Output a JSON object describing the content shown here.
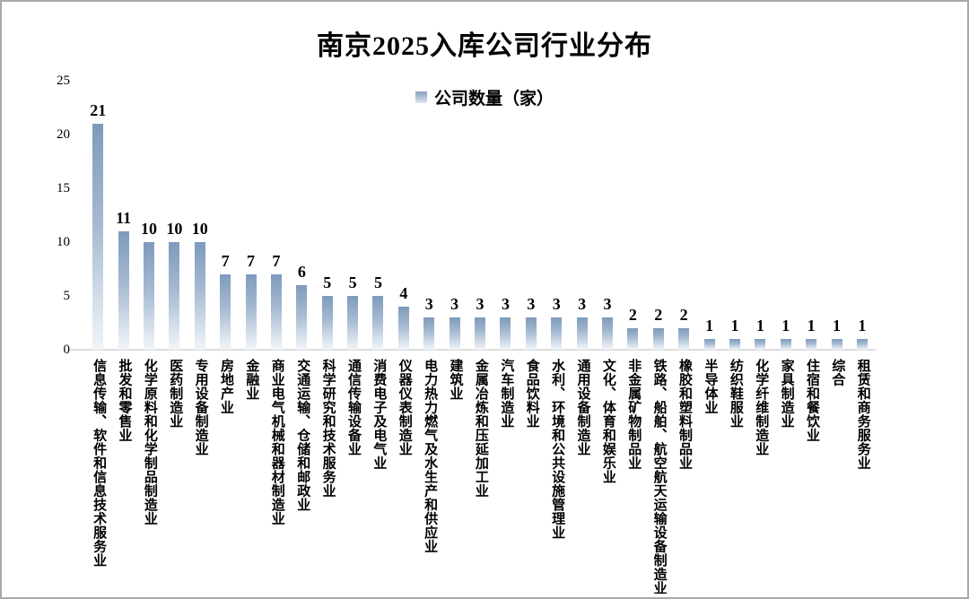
{
  "title": "南京2025入库公司行业分布",
  "legend": {
    "label": "公司数量（家）"
  },
  "colors": {
    "bar_top": "#7e9abc",
    "bar_bottom": "#f1f5f9",
    "baseline": "#dcdcdc",
    "text": "#000000"
  },
  "chart_data": {
    "type": "bar",
    "title": "南京2025入库公司行业分布",
    "legend_entries": [
      "公司数量（家）"
    ],
    "legend_position": "top-center",
    "xlabel": "",
    "ylabel": "",
    "ylim": [
      0,
      25
    ],
    "yticks": [
      0,
      5,
      10,
      15,
      20,
      25
    ],
    "grid": false,
    "data_labels": true,
    "categories": [
      "信息传输、软件和信息技术服务业",
      "批发和零售业",
      "化学原料和化学制品制造业",
      "医药制造业",
      "专用设备制造业",
      "房地产业",
      "金融业",
      "商业电气机械和器材制造业",
      "交通运输、仓储和邮政业",
      "科学研究和技术服务业",
      "通信传输设备业",
      "消费电子及电气业",
      "仪器仪表制造业",
      "电力热力燃气及水生产和供应业",
      "建筑业",
      "金属冶炼和压延加工业",
      "汽车制造业",
      "食品饮料业",
      "水利、环境和公共设施管理业",
      "通用设备制造业",
      "文化、体育和娱乐业",
      "非金属矿物制品业",
      "铁路、船舶、航空航天运输设备制造业",
      "橡胶和塑料制品业",
      "半导体业",
      "纺织鞋服业",
      "化学纤维制造业",
      "家具制造业",
      "住宿和餐饮业",
      "综合",
      "租赁和商务服务业"
    ],
    "values": [
      21,
      11,
      10,
      10,
      10,
      7,
      7,
      7,
      6,
      5,
      5,
      5,
      4,
      3,
      3,
      3,
      3,
      3,
      3,
      3,
      3,
      2,
      2,
      2,
      1,
      1,
      1,
      1,
      1,
      1,
      1
    ]
  }
}
